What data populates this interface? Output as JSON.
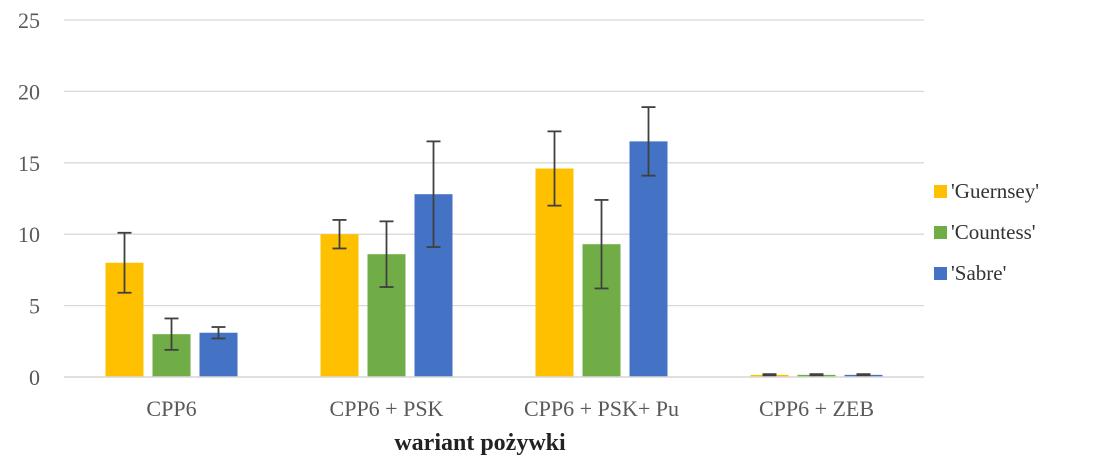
{
  "chart_data": {
    "type": "bar",
    "title": "",
    "xlabel": "wariant pożywki",
    "ylabel": "",
    "ylim": [
      0,
      25
    ],
    "yticks": [
      0,
      5,
      10,
      15,
      20,
      25
    ],
    "grid": true,
    "legend_position": "right",
    "categories": [
      "CPP6",
      "CPP6 + PSK",
      "CPP6 + PSK+ Pu",
      "CPP6 + ZEB"
    ],
    "series": [
      {
        "name": "'Guernsey'",
        "color": "#FFC000",
        "values": [
          8.0,
          10.0,
          14.6,
          0.15
        ],
        "errors": [
          2.1,
          1.0,
          2.6,
          0.05
        ]
      },
      {
        "name": "'Countess'",
        "color": "#70AD47",
        "values": [
          3.0,
          8.6,
          9.3,
          0.15
        ],
        "errors": [
          1.1,
          2.3,
          3.1,
          0.05
        ]
      },
      {
        "name": "'Sabre'",
        "color": "#4472C4",
        "values": [
          3.1,
          12.8,
          16.5,
          0.15
        ],
        "errors": [
          0.4,
          3.7,
          2.4,
          0.05
        ]
      }
    ]
  }
}
